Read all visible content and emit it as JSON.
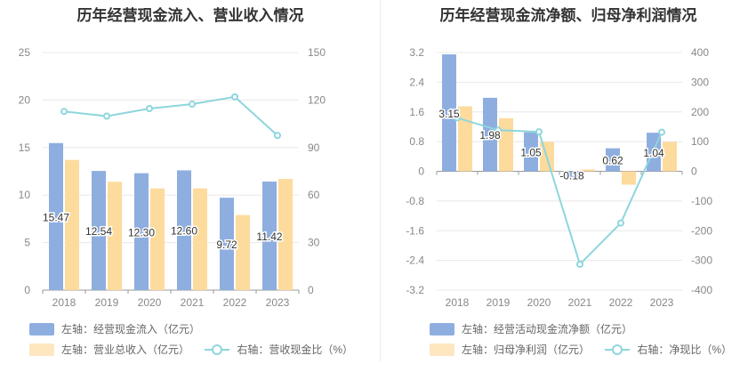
{
  "chart_data": [
    {
      "type": "bar",
      "title": "历年经营现金流入、营业收入情况",
      "categories": [
        "2018",
        "2019",
        "2020",
        "2021",
        "2022",
        "2023"
      ],
      "y_left": {
        "ticks": [
          "0",
          "5",
          "10",
          "15",
          "20",
          "25"
        ],
        "range": [
          0,
          25
        ]
      },
      "y_right": {
        "ticks": [
          "0",
          "30",
          "60",
          "90",
          "120",
          "150"
        ],
        "range": [
          0,
          150
        ]
      },
      "grid": true,
      "legend_position": "bottom-left",
      "series": [
        {
          "name": "左轴：经营现金流入（亿元）",
          "kind": "bar",
          "axis": "left",
          "color": "#8eaedf",
          "values": [
            15.47,
            12.54,
            12.3,
            12.6,
            9.72,
            11.42
          ],
          "labels": [
            "15.47",
            "12.54",
            "12.30",
            "12.60",
            "9.72",
            "11.42"
          ]
        },
        {
          "name": "左轴：营业总收入（亿元）",
          "kind": "bar",
          "axis": "left",
          "color": "#fddb9d",
          "values": [
            13.7,
            11.4,
            10.7,
            10.7,
            7.9,
            11.7
          ]
        },
        {
          "name": "右轴：营收现金比（%）",
          "kind": "line",
          "axis": "right",
          "color": "#8ed6dd",
          "values": [
            112.8,
            109.8,
            114.6,
            117.4,
            122.0,
            97.6
          ]
        }
      ]
    },
    {
      "type": "bar",
      "title": "历年经营现金流净额、归母净利润情况",
      "categories": [
        "2018",
        "2019",
        "2020",
        "2021",
        "2022",
        "2023"
      ],
      "y_left": {
        "ticks": [
          "-3.2",
          "-2.4",
          "-1.6",
          "-0.8",
          "0",
          "0.8",
          "1.6",
          "2.4",
          "3.2"
        ],
        "range": [
          -3.2,
          3.2
        ]
      },
      "y_right": {
        "ticks": [
          "-400",
          "-300",
          "-200",
          "-100",
          "0",
          "100",
          "200",
          "300",
          "400"
        ],
        "range": [
          -400,
          400
        ]
      },
      "grid": true,
      "legend_position": "bottom-left",
      "series": [
        {
          "name": "左轴：经营活动现金流净额（亿元）",
          "kind": "bar",
          "axis": "left",
          "color": "#8eaedf",
          "values": [
            3.15,
            1.98,
            1.05,
            -0.18,
            0.62,
            1.04
          ],
          "labels": [
            "3.15",
            "1.98",
            "1.05",
            "-0.18",
            "0.62",
            "1.04"
          ]
        },
        {
          "name": "左轴：归母净利润（亿元）",
          "kind": "bar",
          "axis": "left",
          "color": "#fddb9d",
          "values": [
            1.75,
            1.43,
            0.79,
            0.05,
            -0.36,
            0.79
          ]
        },
        {
          "name": "右轴：净现比（%）",
          "kind": "line",
          "axis": "right",
          "color": "#8ed6dd",
          "values": [
            180.0,
            138.5,
            132.9,
            -313.0,
            -174.0,
            131.6
          ]
        }
      ]
    }
  ]
}
